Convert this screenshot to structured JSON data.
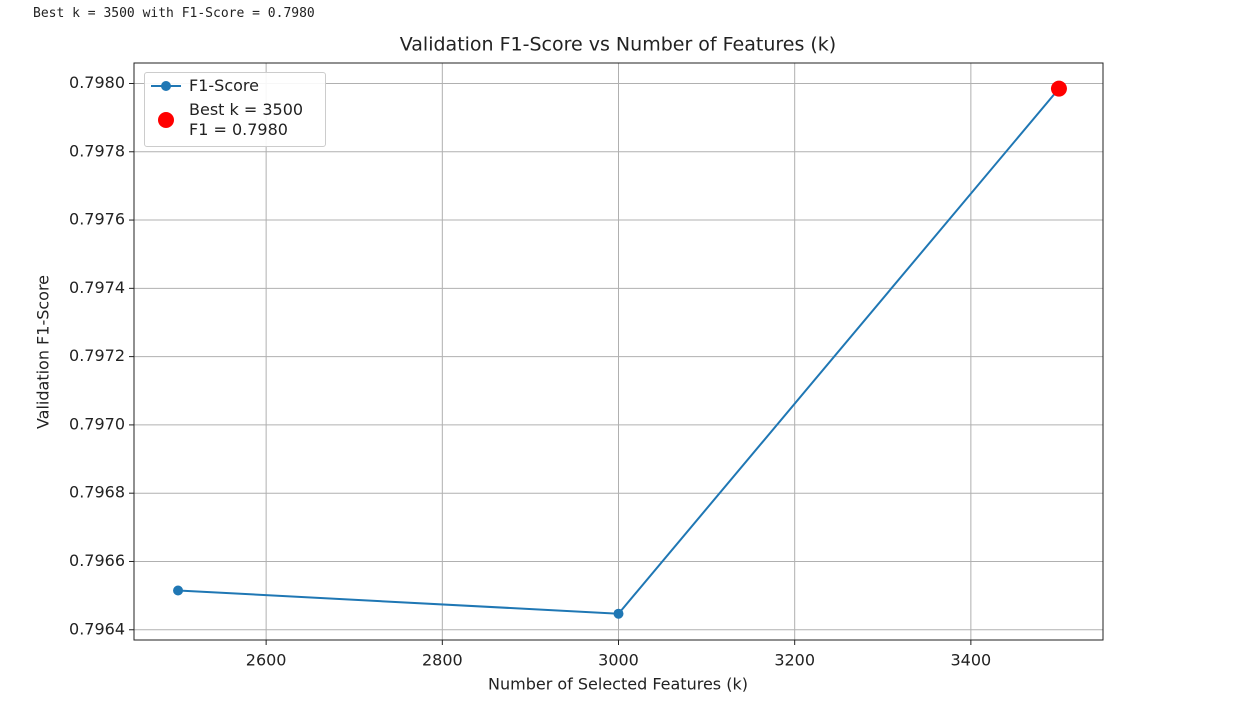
{
  "output_text": "Best k = 3500 with F1-Score = 0.7980",
  "chart_data": {
    "type": "line",
    "title": "Validation F1-Score vs Number of Features (k)",
    "x_label": "Number of Selected Features (k)",
    "y_label": "Validation F1-Score",
    "x": [
      2500,
      3000,
      3500
    ],
    "series": [
      {
        "name": "F1-Score",
        "type": "line",
        "color": "#1f77b4",
        "values": [
          0.796515,
          0.796447,
          0.797985
        ]
      },
      {
        "name": "Best k = 3500\nF1 = 0.7980",
        "type": "scatter",
        "color": "#ff0000",
        "x": [
          3500
        ],
        "values": [
          0.797985
        ]
      }
    ],
    "xlim": [
      2450,
      3550
    ],
    "ylim": [
      0.79637,
      0.79806
    ],
    "xticks": [
      2600,
      2800,
      3000,
      3200,
      3400
    ],
    "yticks": [
      {
        "value": 0.7964,
        "label": "0.7964"
      },
      {
        "value": 0.7966,
        "label": "0.7966"
      },
      {
        "value": 0.7968,
        "label": "0.7968"
      },
      {
        "value": 0.797,
        "label": "0.7970"
      },
      {
        "value": 0.7972,
        "label": "0.7972"
      },
      {
        "value": 0.7974,
        "label": "0.7974"
      },
      {
        "value": 0.7976,
        "label": "0.7976"
      },
      {
        "value": 0.7978,
        "label": "0.7978"
      },
      {
        "value": 0.798,
        "label": "0.7980"
      }
    ],
    "grid": true,
    "legend": "upper-left"
  }
}
